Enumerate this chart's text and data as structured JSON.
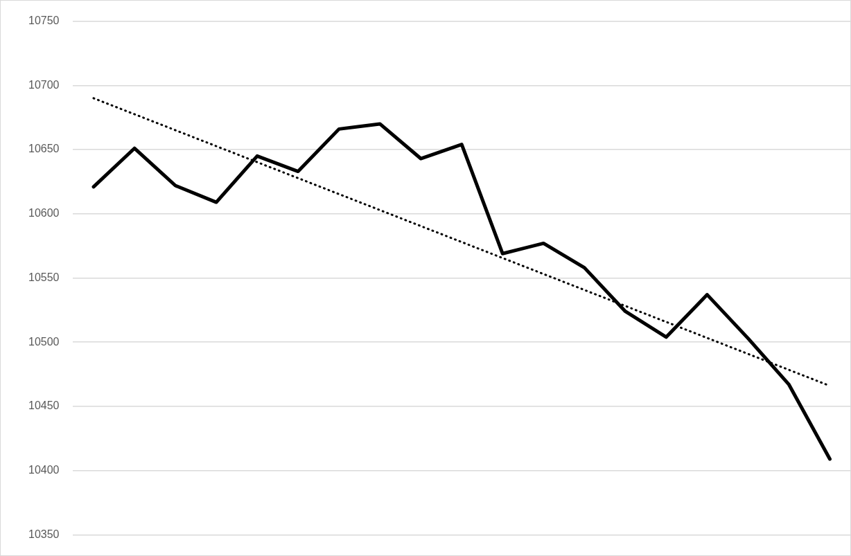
{
  "chart_data": {
    "type": "line",
    "categories": [
      null,
      null,
      null,
      null,
      null,
      null,
      null,
      null,
      null,
      null,
      null,
      null,
      null,
      null,
      null,
      null,
      null,
      null,
      null
    ],
    "series": [
      {
        "color": "#000000",
        "values": [
          10621,
          10651,
          10622,
          10609,
          10645,
          10633,
          10666,
          10670,
          10643,
          10654,
          10569,
          10577,
          10558,
          10524,
          10504,
          10537,
          10503,
          10467,
          10409
        ]
      },
      {
        "color": "#000000",
        "line_style": "dotted",
        "values": [
          10690,
          null,
          null,
          null,
          null,
          null,
          null,
          null,
          null,
          null,
          null,
          null,
          null,
          null,
          null,
          null,
          null,
          null,
          10466
        ]
      }
    ],
    "ylim": [
      10350,
      10750
    ],
    "yticks": [
      10350,
      10400,
      10450,
      10500,
      10550,
      10600,
      10650,
      10700,
      10750
    ],
    "grid": "y",
    "legend": false,
    "marker": "none",
    "tick_labels": "y"
  }
}
